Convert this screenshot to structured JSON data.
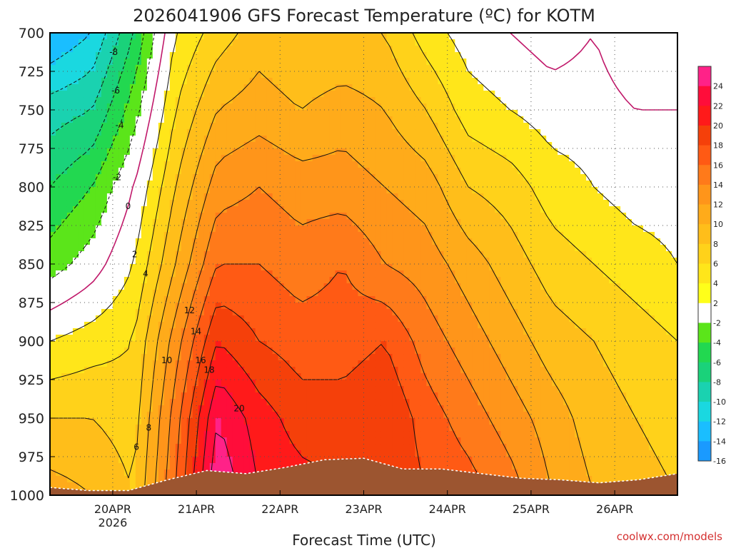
{
  "chart_data": {
    "type": "heatmap",
    "title": "2026041906 GFS Forecast Temperature (ºC) for KOTM",
    "xlabel": "Forecast Time (UTC)",
    "ylabel": "",
    "credit": "coolwx.com/models",
    "y_ticks": [
      "700",
      "725",
      "750",
      "775",
      "800",
      "825",
      "850",
      "875",
      "900",
      "925",
      "950",
      "975",
      "1000"
    ],
    "ylim": [
      1000,
      700
    ],
    "x_ticks": [
      {
        "day": "20APR",
        "year": "2026"
      },
      {
        "day": "21APR",
        "year": ""
      },
      {
        "day": "22APR",
        "year": ""
      },
      {
        "day": "23APR",
        "year": ""
      },
      {
        "day": "24APR",
        "year": ""
      },
      {
        "day": "25APR",
        "year": ""
      },
      {
        "day": "26APR",
        "year": ""
      }
    ],
    "xlim_hours": [
      6,
      186
    ],
    "x_tick_hours": [
      24,
      48,
      72,
      96,
      120,
      144,
      168
    ],
    "grid": true,
    "grid_style": "dotted",
    "colorbar": {
      "position": "right",
      "labels": [
        "24",
        "22",
        "20",
        "18",
        "16",
        "14",
        "12",
        "10",
        "8",
        "6",
        "4",
        "2",
        "-2",
        "-4",
        "-6",
        "-8",
        "-10",
        "-12",
        "-14",
        "-16"
      ],
      "colors": [
        "#ff2288",
        "#ff0d3a",
        "#ff1a1a",
        "#f5400a",
        "#ff5a14",
        "#ff7a1a",
        "#ff951a",
        "#ffab1a",
        "#ffbe1a",
        "#ffd21a",
        "#ffe61a",
        "#ffff1a",
        "#ffffff",
        "#5be51a",
        "#22d850",
        "#1ad27a",
        "#1ad2b0",
        "#1ad8e0",
        "#1abeff",
        "#1a9aff"
      ]
    },
    "terrain_color": "#9c5530",
    "values_layout": "sorted by forecast hour (x) then pressure level in hPa (y); temperature in degC",
    "x_hours": [
      6,
      18,
      30,
      42,
      54,
      66,
      78,
      90,
      102,
      114,
      126,
      138,
      150,
      162,
      174,
      186
    ],
    "levels": [
      700,
      750,
      800,
      850,
      900,
      950,
      1000
    ],
    "temperature_c": [
      [
        -14,
        -9,
        -6,
        -3,
        2,
        6,
        9
      ],
      [
        -12,
        -8,
        -4,
        -1,
        3,
        6,
        8
      ],
      [
        -6,
        -3,
        0,
        2,
        4,
        5,
        6
      ],
      [
        2,
        4,
        6,
        8,
        11,
        13,
        14
      ],
      [
        5,
        8,
        11,
        14,
        18,
        22,
        24
      ],
      [
        7,
        9,
        12,
        14,
        16,
        19,
        20
      ],
      [
        6,
        8,
        11,
        13,
        15,
        17,
        19
      ],
      [
        6,
        9,
        11,
        14,
        15,
        17,
        18
      ],
      [
        6,
        8,
        10,
        12,
        16,
        18,
        18
      ],
      [
        3,
        6,
        9,
        11,
        13,
        15,
        16
      ],
      [
        1,
        3,
        6,
        9,
        11,
        13,
        15
      ],
      [
        0,
        2,
        5,
        7,
        9,
        11,
        13
      ],
      [
        -1,
        1,
        3,
        5,
        7,
        9,
        10
      ],
      [
        0,
        1,
        2,
        4,
        6,
        7,
        8
      ],
      [
        -2,
        0,
        1,
        3,
        5,
        6,
        7
      ],
      [
        -2,
        0,
        1,
        2,
        4,
        5,
        6
      ]
    ],
    "surface_pressure_hpa": [
      995,
      997,
      997,
      990,
      984,
      986,
      982,
      977,
      976,
      983,
      983,
      986,
      989,
      990,
      992,
      990,
      986
    ]
  }
}
